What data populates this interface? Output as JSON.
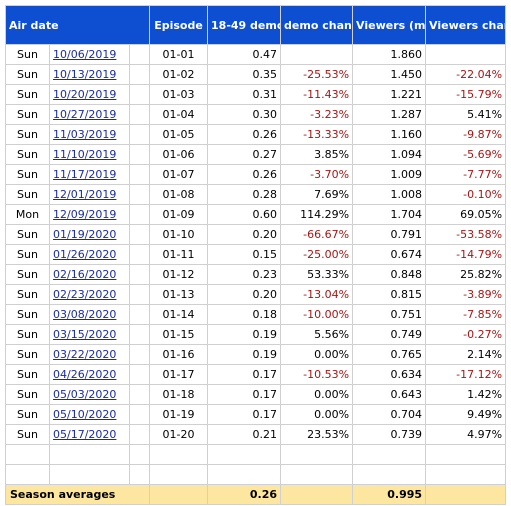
{
  "headers": {
    "air_date": "Air date",
    "episode": "Episode",
    "demo": "18-49 demo",
    "demo_change": "demo change",
    "viewers": "Viewers (millions)",
    "viewers_change": "Viewers change"
  },
  "rows": [
    {
      "day": "Sun",
      "date": "10/06/2019",
      "episode": "01-01",
      "demo": "0.47",
      "demo_change": "",
      "viewers": "1.860",
      "viewers_change": ""
    },
    {
      "day": "Sun",
      "date": "10/13/2019",
      "episode": "01-02",
      "demo": "0.35",
      "demo_change": "-25.53%",
      "viewers": "1.450",
      "viewers_change": "-22.04%"
    },
    {
      "day": "Sun",
      "date": "10/20/2019",
      "episode": "01-03",
      "demo": "0.31",
      "demo_change": "-11.43%",
      "viewers": "1.221",
      "viewers_change": "-15.79%"
    },
    {
      "day": "Sun",
      "date": "10/27/2019",
      "episode": "01-04",
      "demo": "0.30",
      "demo_change": "-3.23%",
      "viewers": "1.287",
      "viewers_change": "5.41%"
    },
    {
      "day": "Sun",
      "date": "11/03/2019",
      "episode": "01-05",
      "demo": "0.26",
      "demo_change": "-13.33%",
      "viewers": "1.160",
      "viewers_change": "-9.87%"
    },
    {
      "day": "Sun",
      "date": "11/10/2019",
      "episode": "01-06",
      "demo": "0.27",
      "demo_change": "3.85%",
      "viewers": "1.094",
      "viewers_change": "-5.69%"
    },
    {
      "day": "Sun",
      "date": "11/17/2019",
      "episode": "01-07",
      "demo": "0.26",
      "demo_change": "-3.70%",
      "viewers": "1.009",
      "viewers_change": "-7.77%"
    },
    {
      "day": "Sun",
      "date": "12/01/2019",
      "episode": "01-08",
      "demo": "0.28",
      "demo_change": "7.69%",
      "viewers": "1.008",
      "viewers_change": "-0.10%"
    },
    {
      "day": "Mon",
      "date": "12/09/2019",
      "episode": "01-09",
      "demo": "0.60",
      "demo_change": "114.29%",
      "viewers": "1.704",
      "viewers_change": "69.05%"
    },
    {
      "day": "Sun",
      "date": "01/19/2020",
      "episode": "01-10",
      "demo": "0.20",
      "demo_change": "-66.67%",
      "viewers": "0.791",
      "viewers_change": "-53.58%"
    },
    {
      "day": "Sun",
      "date": "01/26/2020",
      "episode": "01-11",
      "demo": "0.15",
      "demo_change": "-25.00%",
      "viewers": "0.674",
      "viewers_change": "-14.79%"
    },
    {
      "day": "Sun",
      "date": "02/16/2020",
      "episode": "01-12",
      "demo": "0.23",
      "demo_change": "53.33%",
      "viewers": "0.848",
      "viewers_change": "25.82%"
    },
    {
      "day": "Sun",
      "date": "02/23/2020",
      "episode": "01-13",
      "demo": "0.20",
      "demo_change": "-13.04%",
      "viewers": "0.815",
      "viewers_change": "-3.89%"
    },
    {
      "day": "Sun",
      "date": "03/08/2020",
      "episode": "01-14",
      "demo": "0.18",
      "demo_change": "-10.00%",
      "viewers": "0.751",
      "viewers_change": "-7.85%"
    },
    {
      "day": "Sun",
      "date": "03/15/2020",
      "episode": "01-15",
      "demo": "0.19",
      "demo_change": "5.56%",
      "viewers": "0.749",
      "viewers_change": "-0.27%"
    },
    {
      "day": "Sun",
      "date": "03/22/2020",
      "episode": "01-16",
      "demo": "0.19",
      "demo_change": "0.00%",
      "viewers": "0.765",
      "viewers_change": "2.14%"
    },
    {
      "day": "Sun",
      "date": "04/26/2020",
      "episode": "01-17",
      "demo": "0.17",
      "demo_change": "-10.53%",
      "viewers": "0.634",
      "viewers_change": "-17.12%"
    },
    {
      "day": "Sun",
      "date": "05/03/2020",
      "episode": "01-18",
      "demo": "0.17",
      "demo_change": "0.00%",
      "viewers": "0.643",
      "viewers_change": "1.42%"
    },
    {
      "day": "Sun",
      "date": "05/10/2020",
      "episode": "01-19",
      "demo": "0.17",
      "demo_change": "0.00%",
      "viewers": "0.704",
      "viewers_change": "9.49%"
    },
    {
      "day": "Sun",
      "date": "05/17/2020",
      "episode": "01-20",
      "demo": "0.21",
      "demo_change": "23.53%",
      "viewers": "0.739",
      "viewers_change": "4.97%"
    }
  ],
  "averages": {
    "label": "Season averages",
    "demo": "0.26",
    "viewers": "0.995"
  },
  "colors": {
    "header_bg": "#0d4fd0",
    "header_text": "#ffffff",
    "link": "#1a2ba0",
    "negative": "#a01818",
    "average_bg": "#fde7a0"
  }
}
